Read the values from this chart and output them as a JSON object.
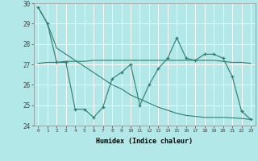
{
  "title": "",
  "xlabel": "Humidex (Indice chaleur)",
  "bg_color": "#b3e8e8",
  "grid_color": "#ffffff",
  "line_color": "#2e7d6e",
  "xlim": [
    -0.5,
    23.5
  ],
  "ylim": [
    24,
    30
  ],
  "xticks": [
    0,
    1,
    2,
    3,
    4,
    5,
    6,
    7,
    8,
    9,
    10,
    11,
    12,
    13,
    14,
    15,
    16,
    17,
    18,
    19,
    20,
    21,
    22,
    23
  ],
  "yticks": [
    24,
    25,
    26,
    27,
    28,
    29,
    30
  ],
  "series1_x": [
    0,
    1,
    2,
    3,
    4,
    5,
    6,
    7,
    8,
    9,
    10,
    11,
    12,
    13,
    14,
    15,
    16,
    17,
    18,
    19,
    20,
    21,
    22,
    23
  ],
  "series1_y": [
    29.8,
    29.0,
    27.1,
    27.1,
    24.8,
    24.8,
    24.4,
    24.9,
    26.3,
    26.6,
    27.0,
    25.0,
    26.0,
    26.8,
    27.3,
    28.3,
    27.3,
    27.2,
    27.5,
    27.5,
    27.3,
    26.4,
    24.7,
    24.3
  ],
  "series2_x": [
    0,
    1,
    2,
    3,
    4,
    5,
    6,
    7,
    8,
    9,
    10,
    11,
    12,
    13,
    14,
    15,
    16,
    17,
    18,
    19,
    20,
    21,
    22,
    23
  ],
  "series2_y": [
    27.05,
    27.1,
    27.1,
    27.15,
    27.15,
    27.15,
    27.2,
    27.2,
    27.2,
    27.2,
    27.2,
    27.2,
    27.2,
    27.2,
    27.2,
    27.2,
    27.2,
    27.2,
    27.2,
    27.2,
    27.15,
    27.1,
    27.1,
    27.05
  ],
  "series3_x": [
    0,
    1,
    2,
    3,
    4,
    5,
    6,
    7,
    8,
    9,
    10,
    11,
    12,
    13,
    14,
    15,
    16,
    17,
    18,
    19,
    20,
    21,
    22,
    23
  ],
  "series3_y": [
    29.8,
    29.0,
    27.8,
    27.5,
    27.2,
    26.9,
    26.6,
    26.3,
    26.0,
    25.8,
    25.5,
    25.3,
    25.1,
    24.9,
    24.75,
    24.6,
    24.5,
    24.45,
    24.4,
    24.4,
    24.4,
    24.38,
    24.35,
    24.3
  ]
}
